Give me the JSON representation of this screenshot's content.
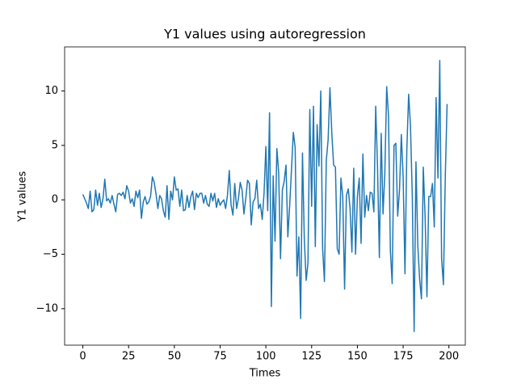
{
  "chart_data": {
    "type": "line",
    "title": "Y1 values using autoregression",
    "xlabel": "Times",
    "ylabel": "Y1 values",
    "x": [
      0,
      1,
      2,
      3,
      4,
      5,
      6,
      7,
      8,
      9,
      10,
      11,
      12,
      13,
      14,
      15,
      16,
      17,
      18,
      19,
      20,
      21,
      22,
      23,
      24,
      25,
      26,
      27,
      28,
      29,
      30,
      31,
      32,
      33,
      34,
      35,
      36,
      37,
      38,
      39,
      40,
      41,
      42,
      43,
      44,
      45,
      46,
      47,
      48,
      49,
      50,
      51,
      52,
      53,
      54,
      55,
      56,
      57,
      58,
      59,
      60,
      61,
      62,
      63,
      64,
      65,
      66,
      67,
      68,
      69,
      70,
      71,
      72,
      73,
      74,
      75,
      76,
      77,
      78,
      79,
      80,
      81,
      82,
      83,
      84,
      85,
      86,
      87,
      88,
      89,
      90,
      91,
      92,
      93,
      94,
      95,
      96,
      97,
      98,
      99,
      100,
      101,
      102,
      103,
      104,
      105,
      106,
      107,
      108,
      109,
      110,
      111,
      112,
      113,
      114,
      115,
      116,
      117,
      118,
      119,
      120,
      121,
      122,
      123,
      124,
      125,
      126,
      127,
      128,
      129,
      130,
      131,
      132,
      133,
      134,
      135,
      136,
      137,
      138,
      139,
      140,
      141,
      142,
      143,
      144,
      145,
      146,
      147,
      148,
      149,
      150,
      151,
      152,
      153,
      154,
      155,
      156,
      157,
      158,
      159,
      160,
      161,
      162,
      163,
      164,
      165,
      166,
      167,
      168,
      169,
      170,
      171,
      172,
      173,
      174,
      175,
      176,
      177,
      178,
      179,
      180,
      181,
      182,
      183,
      184,
      185,
      186,
      187,
      188,
      189,
      190,
      191,
      192,
      193,
      194,
      195,
      196,
      197,
      198,
      199
    ],
    "series": [
      {
        "color": "#1f77b4",
        "values": [
          0.5,
          0.1,
          -0.3,
          -0.8,
          0.8,
          -1.1,
          -0.9,
          0.9,
          -0.5,
          0.6,
          -0.7,
          0.1,
          1.9,
          -0.1,
          0.1,
          -0.3,
          0.4,
          -0.4,
          -1.1,
          0.5,
          0.6,
          0.4,
          0.7,
          0.1,
          1.3,
          0.8,
          -0.3,
          0.1,
          -0.6,
          0.8,
          0.2,
          0.9,
          -1.7,
          -0.2,
          0.3,
          -0.4,
          -0.2,
          0.3,
          2.1,
          1.6,
          0.5,
          -0.8,
          0.4,
          0.1,
          -1.0,
          -1.6,
          1.3,
          -1.8,
          0.8,
          0.0,
          2.1,
          0.9,
          1.0,
          -0.6,
          0.9,
          -1.0,
          -0.9,
          0.4,
          -0.7,
          0.3,
          0.8,
          -0.9,
          0.6,
          0.2,
          0.6,
          0.6,
          -0.3,
          0.4,
          -0.4,
          -0.6,
          0.6,
          -0.1,
          0.6,
          -0.7,
          0.1,
          -0.5,
          -0.2,
          0.0,
          -0.8,
          0.4,
          2.7,
          -0.5,
          -1.4,
          1.5,
          -0.8,
          0.1,
          1.6,
          0.9,
          -1.3,
          0.1,
          1.8,
          1.5,
          -2.3,
          -0.2,
          0.1,
          1.8,
          -0.8,
          -0.4,
          -1.8,
          0.6,
          4.9,
          -1.0,
          8.0,
          -9.8,
          2.2,
          -3.8,
          4.7,
          2.5,
          -5.4,
          0.9,
          1.7,
          3.2,
          -3.4,
          -0.5,
          2.8,
          6.2,
          4.8,
          -7.0,
          -3.4,
          -10.9,
          4.3,
          -3.6,
          -7.4,
          -5.8,
          8.3,
          -0.6,
          8.6,
          -4.3,
          6.9,
          3.1,
          10.0,
          -4.5,
          -7.5,
          3.6,
          5.5,
          10.3,
          6.2,
          3.2,
          3.0,
          -4.5,
          -5.0,
          2.0,
          0.3,
          -8.2,
          0.4,
          1.0,
          -0.8,
          -4.8,
          2.9,
          -5.0,
          0.3,
          2.0,
          -4.0,
          4.2,
          -1.6,
          0.4,
          -1.0,
          0.7,
          0.6,
          -1.1,
          8.6,
          3.0,
          -5.3,
          6.1,
          -1.3,
          2.5,
          10.4,
          7.7,
          -4.6,
          -7.7,
          5.0,
          5.2,
          -1.5,
          0.9,
          6.0,
          2.1,
          -6.8,
          4.6,
          9.7,
          6.8,
          0.3,
          -12.1,
          3.5,
          -4.2,
          -7.3,
          -9.1,
          3.0,
          -1.6,
          -8.9,
          0.3,
          0.3,
          1.5,
          -2.5,
          9.4,
          2.0,
          12.8,
          -5.4,
          -7.8,
          2.0,
          8.8
        ]
      }
    ],
    "xlim": [
      -9.95,
      208.95
    ],
    "ylim": [
      -13.35,
      14.05
    ],
    "xticks": [
      0,
      25,
      50,
      75,
      100,
      125,
      150,
      175,
      200
    ],
    "yticks": [
      {
        "value": -10,
        "label": "−10"
      },
      {
        "value": -5,
        "label": "−5"
      },
      0,
      5,
      10
    ],
    "grid": false
  }
}
